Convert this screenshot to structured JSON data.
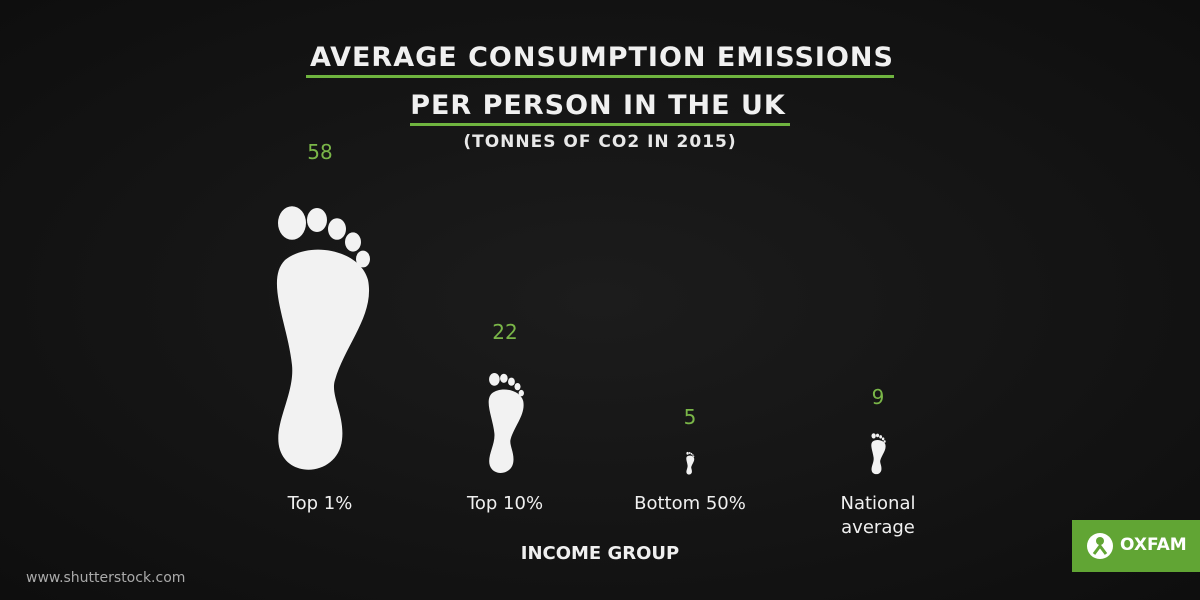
{
  "chart_data": {
    "type": "footprint",
    "title": "AVERAGE CONSUMPTION EMISSIONS PER PERSON IN THE UK",
    "subtitle": "(TONNES OF CO2 IN 2015)",
    "x_label": "INCOME GROUP",
    "categories": [
      "Top 1%",
      "Top 10%",
      "Bottom 50%",
      "National average"
    ],
    "values": [
      58,
      22,
      5,
      9
    ],
    "color": "#f2f2f2",
    "value_label_color": "#7ab648"
  },
  "watermark": "www.shutterstock.com",
  "brand": "OXFAM"
}
